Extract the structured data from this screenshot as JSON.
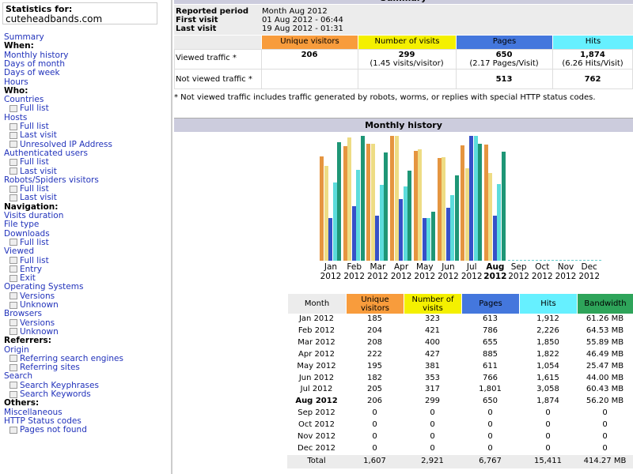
{
  "sidebar": {
    "label": "Statistics for:",
    "site": "cuteheadbands.com",
    "nav": [
      {
        "text": "Summary",
        "kind": "link"
      },
      {
        "text": "When:",
        "kind": "heading"
      },
      {
        "text": "Monthly history",
        "kind": "link"
      },
      {
        "text": "Days of month",
        "kind": "link"
      },
      {
        "text": "Days of week",
        "kind": "link"
      },
      {
        "text": "Hours",
        "kind": "link"
      },
      {
        "text": "Who:",
        "kind": "heading"
      },
      {
        "text": "Countries",
        "kind": "link"
      },
      {
        "text": "Full list",
        "kind": "sublink"
      },
      {
        "text": "Hosts",
        "kind": "link"
      },
      {
        "text": "Full list",
        "kind": "sublink"
      },
      {
        "text": "Last visit",
        "kind": "sublink"
      },
      {
        "text": "Unresolved IP Address",
        "kind": "sublink"
      },
      {
        "text": "Authenticated users",
        "kind": "link"
      },
      {
        "text": "Full list",
        "kind": "sublink"
      },
      {
        "text": "Last visit",
        "kind": "sublink"
      },
      {
        "text": "Robots/Spiders visitors",
        "kind": "link"
      },
      {
        "text": "Full list",
        "kind": "sublink"
      },
      {
        "text": "Last visit",
        "kind": "sublink"
      },
      {
        "text": "Navigation:",
        "kind": "heading"
      },
      {
        "text": "Visits duration",
        "kind": "link"
      },
      {
        "text": "File type",
        "kind": "link"
      },
      {
        "text": "Downloads",
        "kind": "link"
      },
      {
        "text": "Full list",
        "kind": "sublink"
      },
      {
        "text": "Viewed",
        "kind": "link"
      },
      {
        "text": "Full list",
        "kind": "sublink"
      },
      {
        "text": "Entry",
        "kind": "sublink"
      },
      {
        "text": "Exit",
        "kind": "sublink"
      },
      {
        "text": "Operating Systems",
        "kind": "link"
      },
      {
        "text": "Versions",
        "kind": "sublink"
      },
      {
        "text": "Unknown",
        "kind": "sublink"
      },
      {
        "text": "Browsers",
        "kind": "link"
      },
      {
        "text": "Versions",
        "kind": "sublink"
      },
      {
        "text": "Unknown",
        "kind": "sublink"
      },
      {
        "text": "Referrers:",
        "kind": "heading"
      },
      {
        "text": "Origin",
        "kind": "link"
      },
      {
        "text": "Referring search engines",
        "kind": "sublink"
      },
      {
        "text": "Referring sites",
        "kind": "sublink"
      },
      {
        "text": "Search",
        "kind": "link"
      },
      {
        "text": "Search Keyphrases",
        "kind": "sublink"
      },
      {
        "text": "Search Keywords",
        "kind": "sublink"
      },
      {
        "text": "Others:",
        "kind": "heading"
      },
      {
        "text": "Miscellaneous",
        "kind": "link"
      },
      {
        "text": "HTTP Status codes",
        "kind": "link"
      },
      {
        "text": "Pages not found",
        "kind": "sublink"
      }
    ]
  },
  "summary": {
    "title": "Summary",
    "info": [
      {
        "label": "Reported period",
        "value": "Month Aug 2012"
      },
      {
        "label": "First visit",
        "value": "01 Aug 2012 - 06:44"
      },
      {
        "label": "Last visit",
        "value": "19 Aug 2012 - 01:31"
      }
    ],
    "columns": [
      "Unique visitors",
      "Number of visits",
      "Pages",
      "Hits"
    ],
    "viewed": {
      "label": "Viewed traffic *",
      "cells": [
        {
          "value": "206"
        },
        {
          "value": "299",
          "note": "(1.45 visits/visitor)"
        },
        {
          "value": "650",
          "note": "(2.17 Pages/Visit)"
        },
        {
          "value": "1,874",
          "note": "(6.26 Hits/Visit)"
        }
      ]
    },
    "not_viewed": {
      "label": "Not viewed traffic *",
      "pages": "513",
      "hits": "762"
    },
    "note": "* Not viewed traffic includes traffic generated by robots, worms, or replies with special HTTP status codes."
  },
  "monthly": {
    "title": "Monthly history",
    "columns": [
      "Month",
      "Unique visitors",
      "Number of visits",
      "Pages",
      "Hits",
      "Bandwidth"
    ],
    "header_colors": [
      "#f89c3c",
      "#f4f000",
      "#4477dd",
      "#66f0ff",
      "#2ea45a"
    ],
    "bar_colors": [
      "#e59540",
      "#eedc84",
      "#3651c8",
      "#5cdcdc",
      "#1e9676"
    ],
    "current_month": 7,
    "rows": [
      {
        "month": "Jan 2012",
        "values": [
          185,
          323,
          613,
          1912,
          61.26
        ],
        "value_labels": [
          "185",
          "323",
          "613",
          "1,912",
          "61.26 MB"
        ]
      },
      {
        "month": "Feb 2012",
        "values": [
          204,
          421,
          786,
          2226,
          64.53
        ],
        "value_labels": [
          "204",
          "421",
          "786",
          "2,226",
          "64.53 MB"
        ]
      },
      {
        "month": "Mar 2012",
        "values": [
          208,
          400,
          655,
          1850,
          55.89
        ],
        "value_labels": [
          "208",
          "400",
          "655",
          "1,850",
          "55.89 MB"
        ]
      },
      {
        "month": "Apr 2012",
        "values": [
          222,
          427,
          885,
          1822,
          46.49
        ],
        "value_labels": [
          "222",
          "427",
          "885",
          "1,822",
          "46.49 MB"
        ]
      },
      {
        "month": "May 2012",
        "values": [
          195,
          381,
          611,
          1054,
          25.47
        ],
        "value_labels": [
          "195",
          "381",
          "611",
          "1,054",
          "25.47 MB"
        ]
      },
      {
        "month": "Jun 2012",
        "values": [
          182,
          353,
          766,
          1615,
          44.0
        ],
        "value_labels": [
          "182",
          "353",
          "766",
          "1,615",
          "44.00 MB"
        ]
      },
      {
        "month": "Jul 2012",
        "values": [
          205,
          317,
          1801,
          3058,
          60.43
        ],
        "value_labels": [
          "205",
          "317",
          "1,801",
          "3,058",
          "60.43 MB"
        ]
      },
      {
        "month": "Aug 2012",
        "values": [
          206,
          299,
          650,
          1874,
          56.2
        ],
        "value_labels": [
          "206",
          "299",
          "650",
          "1,874",
          "56.20 MB"
        ]
      },
      {
        "month": "Sep 2012",
        "values": [
          0,
          0,
          0,
          0,
          0
        ],
        "value_labels": [
          "0",
          "0",
          "0",
          "0",
          "0"
        ]
      },
      {
        "month": "Oct 2012",
        "values": [
          0,
          0,
          0,
          0,
          0
        ],
        "value_labels": [
          "0",
          "0",
          "0",
          "0",
          "0"
        ]
      },
      {
        "month": "Nov 2012",
        "values": [
          0,
          0,
          0,
          0,
          0
        ],
        "value_labels": [
          "0",
          "0",
          "0",
          "0",
          "0"
        ]
      },
      {
        "month": "Dec 2012",
        "values": [
          0,
          0,
          0,
          0,
          0
        ],
        "value_labels": [
          "0",
          "0",
          "0",
          "0",
          "0"
        ]
      }
    ],
    "total": {
      "label": "Total",
      "values": [
        "1,607",
        "2,921",
        "6,767",
        "15,411",
        "414.27 MB"
      ]
    }
  }
}
